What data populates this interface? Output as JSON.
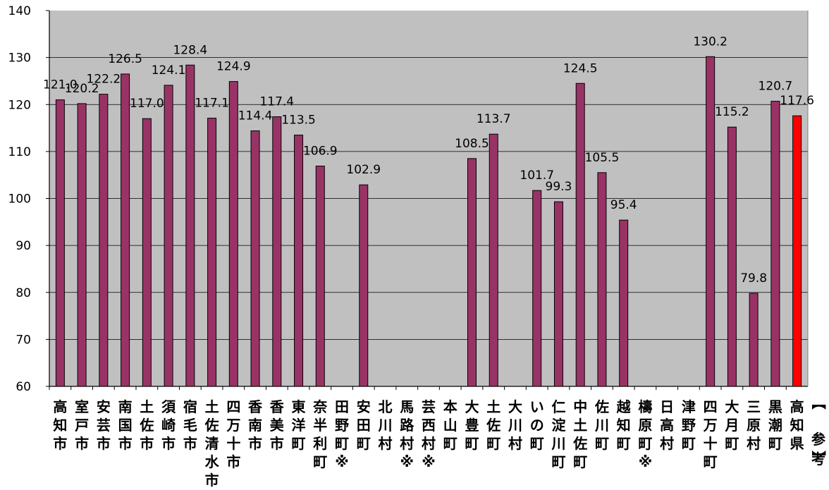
{
  "colors": {
    "plot_background": "#c0c0c0",
    "bar_fill": "#993366",
    "highlight_fill": "#ff0000",
    "bar_stroke": "#000000",
    "gridline": "#000000"
  },
  "chart_data": {
    "type": "bar",
    "title": "",
    "xlabel": "",
    "ylabel": "",
    "ylim": [
      60,
      140
    ],
    "yticks": [
      60,
      70,
      80,
      90,
      100,
      110,
      120,
      130,
      140
    ],
    "grid": true,
    "legend": "none",
    "categories": [
      "高知市",
      "室戸市",
      "安芸市",
      "南国市",
      "土佐市",
      "須崎市",
      "宿毛市",
      "土佐清水市",
      "四万十市",
      "香南市",
      "香美市",
      "東洋町",
      "奈半利町",
      "田野町※",
      "安田町",
      "北川村",
      "馬路村※",
      "芸西村※",
      "本山町",
      "大豊町",
      "土佐町",
      "大川村",
      "いの町",
      "仁淀川町",
      "中土佐町",
      "佐川町",
      "越知町",
      "檮原町※",
      "日高村",
      "津野町",
      "四万十町",
      "大月町",
      "三原村",
      "黒潮町",
      "高知県"
    ],
    "values": [
      121.0,
      120.2,
      122.2,
      126.5,
      117.0,
      124.1,
      128.4,
      117.1,
      124.9,
      114.4,
      117.4,
      113.5,
      106.9,
      null,
      102.9,
      null,
      null,
      null,
      null,
      108.5,
      113.7,
      null,
      101.7,
      99.3,
      124.5,
      105.5,
      95.4,
      null,
      null,
      null,
      130.2,
      115.2,
      79.8,
      120.7,
      117.6
    ],
    "data_labels": [
      "121.0",
      "120.2",
      "122.2",
      "126.5",
      "117.0",
      "124.1",
      "128.4",
      "117.1",
      "124.9",
      "114.4",
      "117.4",
      "113.5",
      "106.9",
      "",
      "102.9",
      "",
      "",
      "",
      "",
      "108.5",
      "113.7",
      "",
      "101.7",
      "99.3",
      "124.5",
      "105.5",
      "95.4",
      "",
      "",
      "",
      "130.2",
      "115.2",
      "79.8",
      "120.7",
      "117.6"
    ],
    "highlight_category": "高知県",
    "side_note": "【参考】"
  }
}
